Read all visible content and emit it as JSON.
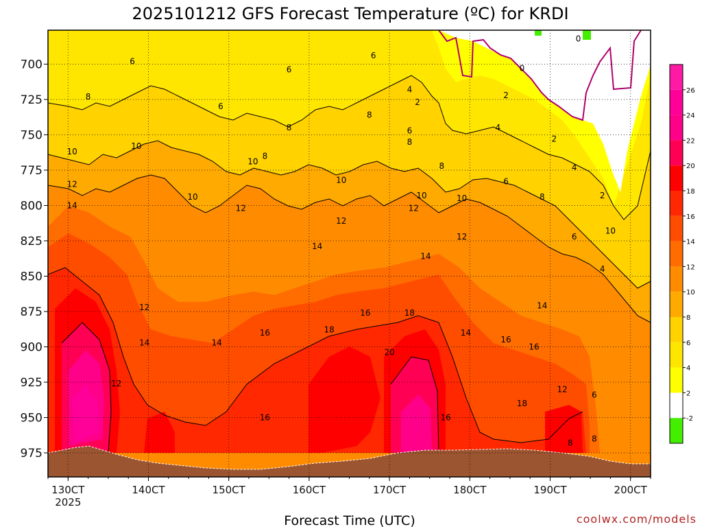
{
  "chart_data": {
    "type": "heatmap",
    "title": "2025101212 GFS Forecast Temperature (ºC) for KRDI",
    "xlabel": "Forecast Time (UTC)",
    "ylabel": "",
    "credit": "coolwx.com/models",
    "x_ticks": [
      {
        "label": "130CT",
        "sub": "2025"
      },
      {
        "label": "140CT",
        "sub": ""
      },
      {
        "label": "150CT",
        "sub": ""
      },
      {
        "label": "160CT",
        "sub": ""
      },
      {
        "label": "170CT",
        "sub": ""
      },
      {
        "label": "180CT",
        "sub": ""
      },
      {
        "label": "190CT",
        "sub": ""
      },
      {
        "label": "200CT",
        "sub": ""
      }
    ],
    "x_days": [
      13,
      14,
      15,
      16,
      17,
      18,
      19,
      20
    ],
    "xlim": [
      12.75,
      20.25
    ],
    "y_ticks": [
      700,
      725,
      750,
      775,
      800,
      825,
      850,
      875,
      900,
      925,
      950,
      975
    ],
    "ylim": [
      992,
      676
    ],
    "colorbar": {
      "levels": [
        -2,
        2,
        4,
        6,
        8,
        10,
        12,
        14,
        16,
        18,
        20,
        22,
        24,
        26
      ],
      "colors": [
        "#44ee00",
        "#ffffff",
        "#ffff00",
        "#ffe600",
        "#ffd200",
        "#ffaa00",
        "#ff8c00",
        "#ff6c00",
        "#ff4d00",
        "#ff2800",
        "#ff0000",
        "#ff0055",
        "#ff0088",
        "#ff0099",
        "#ff1aa6"
      ]
    },
    "terrain_color": "#9b5531",
    "contour_labels": [
      {
        "text": "6",
        "x": 13.8,
        "p": 698
      },
      {
        "text": "6",
        "x": 15.75,
        "p": 704
      },
      {
        "text": "6",
        "x": 16.8,
        "p": 694
      },
      {
        "text": "6",
        "x": 14.9,
        "p": 730
      },
      {
        "text": "8",
        "x": 13.25,
        "p": 723
      },
      {
        "text": "8",
        "x": 15.75,
        "p": 745
      },
      {
        "text": "8",
        "x": 16.75,
        "p": 736
      },
      {
        "text": "8",
        "x": 15.45,
        "p": 765
      },
      {
        "text": "8",
        "x": 17.25,
        "p": 755
      },
      {
        "text": "10",
        "x": 13.05,
        "p": 762
      },
      {
        "text": "10",
        "x": 13.85,
        "p": 758
      },
      {
        "text": "10",
        "x": 15.3,
        "p": 769
      },
      {
        "text": "10",
        "x": 16.4,
        "p": 782
      },
      {
        "text": "10",
        "x": 14.55,
        "p": 794
      },
      {
        "text": "10",
        "x": 17.4,
        "p": 793
      },
      {
        "text": "10",
        "x": 17.9,
        "p": 795
      },
      {
        "text": "10",
        "x": 19.75,
        "p": 818
      },
      {
        "text": "12",
        "x": 13.05,
        "p": 785
      },
      {
        "text": "12",
        "x": 15.15,
        "p": 802
      },
      {
        "text": "12",
        "x": 16.4,
        "p": 811
      },
      {
        "text": "12",
        "x": 17.3,
        "p": 802
      },
      {
        "text": "12",
        "x": 17.9,
        "p": 822
      },
      {
        "text": "12",
        "x": 13.95,
        "p": 872
      },
      {
        "text": "12",
        "x": 13.6,
        "p": 926
      },
      {
        "text": "12",
        "x": 19.15,
        "p": 930
      },
      {
        "text": "14",
        "x": 13.05,
        "p": 800
      },
      {
        "text": "14",
        "x": 16.1,
        "p": 829
      },
      {
        "text": "14",
        "x": 17.45,
        "p": 836
      },
      {
        "text": "14",
        "x": 13.95,
        "p": 897
      },
      {
        "text": "14",
        "x": 14.85,
        "p": 897
      },
      {
        "text": "14",
        "x": 17.95,
        "p": 890
      },
      {
        "text": "14",
        "x": 18.9,
        "p": 871
      },
      {
        "text": "16",
        "x": 15.45,
        "p": 890
      },
      {
        "text": "16",
        "x": 16.7,
        "p": 876
      },
      {
        "text": "16",
        "x": 15.45,
        "p": 950
      },
      {
        "text": "16",
        "x": 17.7,
        "p": 950
      },
      {
        "text": "16",
        "x": 18.45,
        "p": 895
      },
      {
        "text": "16",
        "x": 18.8,
        "p": 900
      },
      {
        "text": "18",
        "x": 16.25,
        "p": 888
      },
      {
        "text": "18",
        "x": 17.25,
        "p": 876
      },
      {
        "text": "18",
        "x": 18.65,
        "p": 940
      },
      {
        "text": "20",
        "x": 17.0,
        "p": 904
      },
      {
        "text": "4",
        "x": 17.25,
        "p": 718
      },
      {
        "text": "2",
        "x": 17.35,
        "p": 727
      },
      {
        "text": "6",
        "x": 17.25,
        "p": 747
      },
      {
        "text": "8",
        "x": 17.65,
        "p": 772
      },
      {
        "text": "2",
        "x": 18.45,
        "p": 722
      },
      {
        "text": "4",
        "x": 18.35,
        "p": 745
      },
      {
        "text": "6",
        "x": 18.45,
        "p": 783
      },
      {
        "text": "8",
        "x": 18.9,
        "p": 794
      },
      {
        "text": "0",
        "x": 18.65,
        "p": 703
      },
      {
        "text": "0",
        "x": 19.35,
        "p": 682
      },
      {
        "text": "2",
        "x": 19.05,
        "p": 753
      },
      {
        "text": "4",
        "x": 19.3,
        "p": 773
      },
      {
        "text": "2",
        "x": 19.65,
        "p": 793
      },
      {
        "text": "6",
        "x": 19.3,
        "p": 822
      },
      {
        "text": "4",
        "x": 19.65,
        "p": 845
      },
      {
        "text": "6",
        "x": 19.55,
        "p": 934
      },
      {
        "text": "8",
        "x": 19.25,
        "p": 968
      },
      {
        "text": "8",
        "x": 19.55,
        "p": 965
      }
    ]
  }
}
